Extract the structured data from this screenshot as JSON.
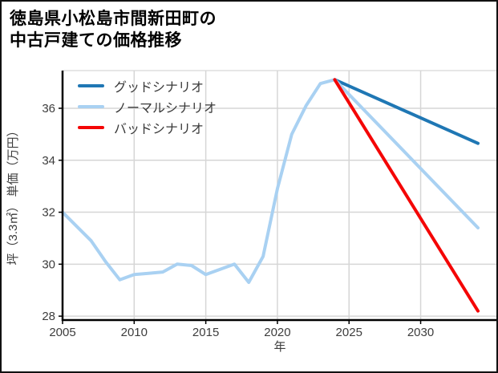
{
  "figure": {
    "title_line1": "徳島県小松島市間新田町の",
    "title_line2": "中古戸建ての価格推移"
  },
  "chart_data": {
    "type": "line",
    "title": "徳島県小松島市間新田町の中古戸建ての価格推移",
    "xlabel": "年",
    "ylabel": "坪（3.3㎡） 単価（万円）",
    "xlim": [
      2005,
      2035.4
    ],
    "ylim": [
      27.85,
      37.45
    ],
    "xticks": [
      2005,
      2010,
      2015,
      2020,
      2025,
      2030
    ],
    "yticks": [
      28,
      30,
      32,
      34,
      36
    ],
    "grid": true,
    "legend_position": "upper left",
    "colors": {
      "grid": "#d6d6d6",
      "spine": "#000000",
      "tick_label": "#3d3d3d"
    },
    "series": [
      {
        "id": "good",
        "name": "グッドシナリオ",
        "color": "#1f77b4",
        "points": [
          [
            2024,
            37.1
          ],
          [
            2034,
            34.65
          ]
        ]
      },
      {
        "id": "normal",
        "name": "ノーマルシナリオ",
        "color": "#a9d1f2",
        "points": [
          [
            2005,
            32.0
          ],
          [
            2006,
            31.45
          ],
          [
            2007,
            30.9
          ],
          [
            2008,
            30.1
          ],
          [
            2009,
            29.4
          ],
          [
            2010,
            29.6
          ],
          [
            2011,
            29.65
          ],
          [
            2012,
            29.7
          ],
          [
            2013,
            30.0
          ],
          [
            2014,
            29.95
          ],
          [
            2015,
            29.6
          ],
          [
            2016,
            29.8
          ],
          [
            2017,
            30.0
          ],
          [
            2018,
            29.3
          ],
          [
            2019,
            30.3
          ],
          [
            2020,
            32.9
          ],
          [
            2021,
            35.0
          ],
          [
            2022,
            36.1
          ],
          [
            2023,
            36.95
          ],
          [
            2024,
            37.1
          ],
          [
            2034,
            31.4
          ]
        ]
      },
      {
        "id": "bad",
        "name": "バッドシナリオ",
        "color": "#f40606",
        "points": [
          [
            2024,
            37.1
          ],
          [
            2034,
            28.2
          ]
        ]
      }
    ]
  }
}
